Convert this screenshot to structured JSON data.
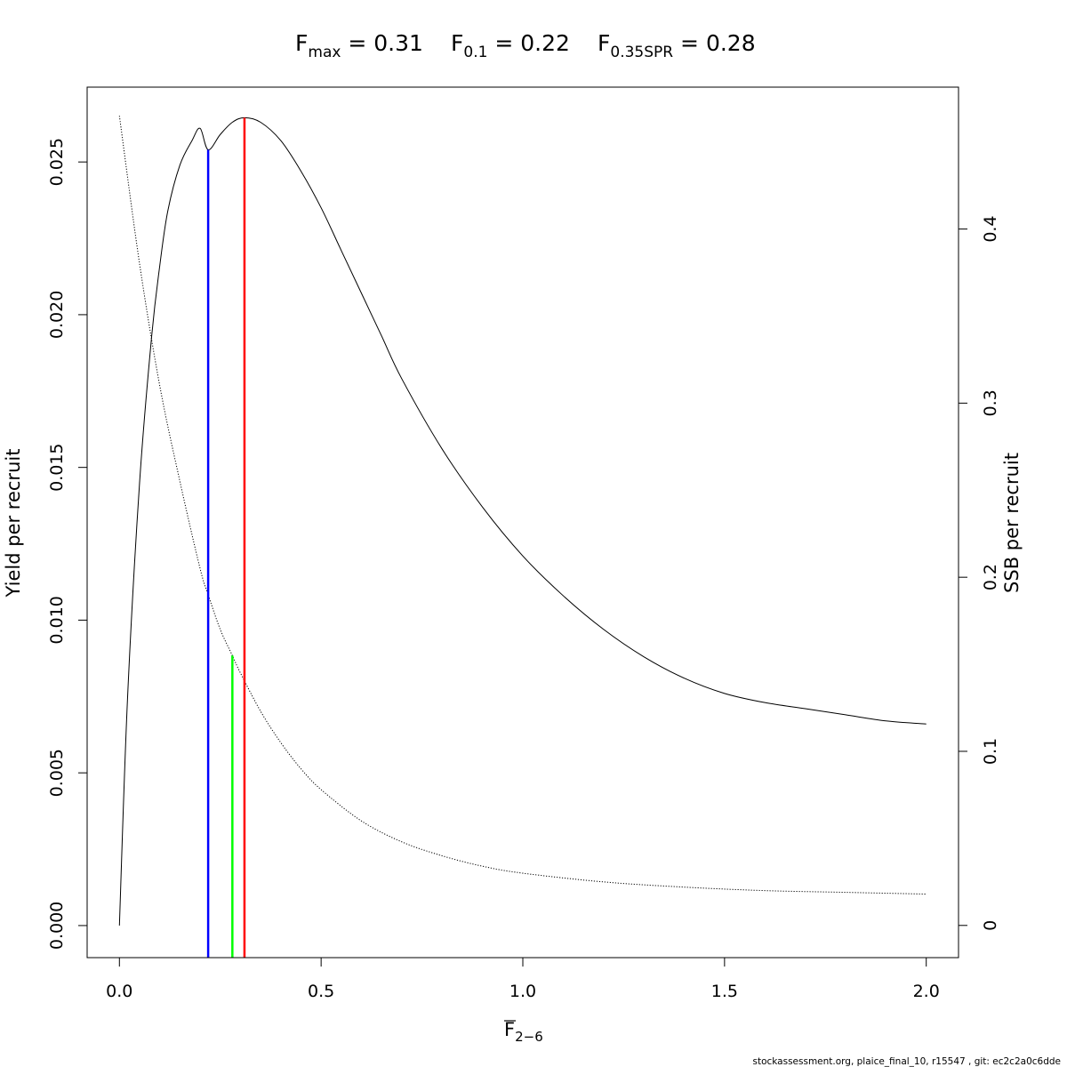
{
  "chart_data": {
    "type": "line",
    "title": {
      "fmax": {
        "main": "F",
        "sub": "max",
        "rest": " = 0.31",
        "value": 0.31
      },
      "f01": {
        "main": "F",
        "sub": "0.1",
        "rest": " = 0.22",
        "value": 0.22
      },
      "f035spr": {
        "main": "F",
        "sub": "0.35SPR",
        "rest": " = 0.28",
        "value": 0.28
      }
    },
    "xlabel": {
      "main": "F",
      "sub": "2−6"
    },
    "ylabel": "Yield per recruit",
    "y2label": "SSB per recruit",
    "xlim": [
      -0.08,
      2.08
    ],
    "ylim": [
      -0.00105,
      0.02745
    ],
    "y2lim": [
      -0.0185,
      0.4815
    ],
    "x_ticks": [
      0.0,
      0.5,
      1.0,
      1.5,
      2.0
    ],
    "x_tick_labels": [
      "0.0",
      "0.5",
      "1.0",
      "1.5",
      "2.0"
    ],
    "y_ticks": [
      0.0,
      0.005,
      0.01,
      0.015,
      0.02,
      0.025
    ],
    "y_tick_labels": [
      "0.000",
      "0.005",
      "0.010",
      "0.015",
      "0.020",
      "0.025"
    ],
    "y2_ticks": [
      0,
      0.1,
      0.2,
      0.3,
      0.4
    ],
    "y2_tick_labels": [
      "0",
      "0.1",
      "0.2",
      "0.3",
      "0.4"
    ],
    "series": [
      {
        "key": "ypr",
        "axis": "left",
        "style": "solid",
        "color": "#000000",
        "x": [
          0,
          0.02,
          0.05,
          0.08,
          0.1,
          0.12,
          0.15,
          0.18,
          0.2,
          0.22,
          0.25,
          0.28,
          0.31,
          0.35,
          0.4,
          0.45,
          0.5,
          0.55,
          0.6,
          0.65,
          0.7,
          0.8,
          0.9,
          1.0,
          1.1,
          1.2,
          1.3,
          1.4,
          1.5,
          1.6,
          1.7,
          1.8,
          1.9,
          2.0
        ],
        "y": [
          0,
          0.0074,
          0.0145,
          0.0193,
          0.0216,
          0.0234,
          0.0249,
          0.0257,
          0.0261,
          0.0254,
          0.0259,
          0.0263,
          0.02645,
          0.0263,
          0.0257,
          0.0247,
          0.0235,
          0.0221,
          0.0207,
          0.0193,
          0.0179,
          0.0156,
          0.0137,
          0.0121,
          0.0108,
          0.0097,
          0.0088,
          0.0081,
          0.0076,
          0.0073,
          0.0071,
          0.0069,
          0.0067,
          0.0066
        ]
      },
      {
        "key": "spr",
        "axis": "right",
        "style": "dotted",
        "color": "#000000",
        "x": [
          0,
          0.05,
          0.1,
          0.15,
          0.2,
          0.22,
          0.25,
          0.28,
          0.3,
          0.35,
          0.4,
          0.45,
          0.5,
          0.6,
          0.7,
          0.8,
          0.9,
          1.0,
          1.2,
          1.4,
          1.6,
          1.8,
          2.0
        ],
        "y": [
          0.465,
          0.38,
          0.31,
          0.255,
          0.205,
          0.19,
          0.17,
          0.155,
          0.145,
          0.123,
          0.105,
          0.09,
          0.078,
          0.06,
          0.048,
          0.04,
          0.034,
          0.03,
          0.025,
          0.022,
          0.02,
          0.019,
          0.018
        ]
      }
    ],
    "reference_lines": [
      {
        "key": "f01",
        "x": 0.22,
        "top_axis": "left",
        "top": 0.0254,
        "color": "#0000ff"
      },
      {
        "key": "f035spr",
        "x": 0.28,
        "top_axis": "right",
        "top": 0.155,
        "color": "#00ff00"
      },
      {
        "key": "fmax",
        "x": 0.31,
        "top_axis": "left",
        "top": 0.02645,
        "color": "#ff0000"
      }
    ],
    "grid": false,
    "legend": "none"
  },
  "footer": "stockassessment.org, plaice_final_10, r15547 , git: ec2c2a0c6dde"
}
